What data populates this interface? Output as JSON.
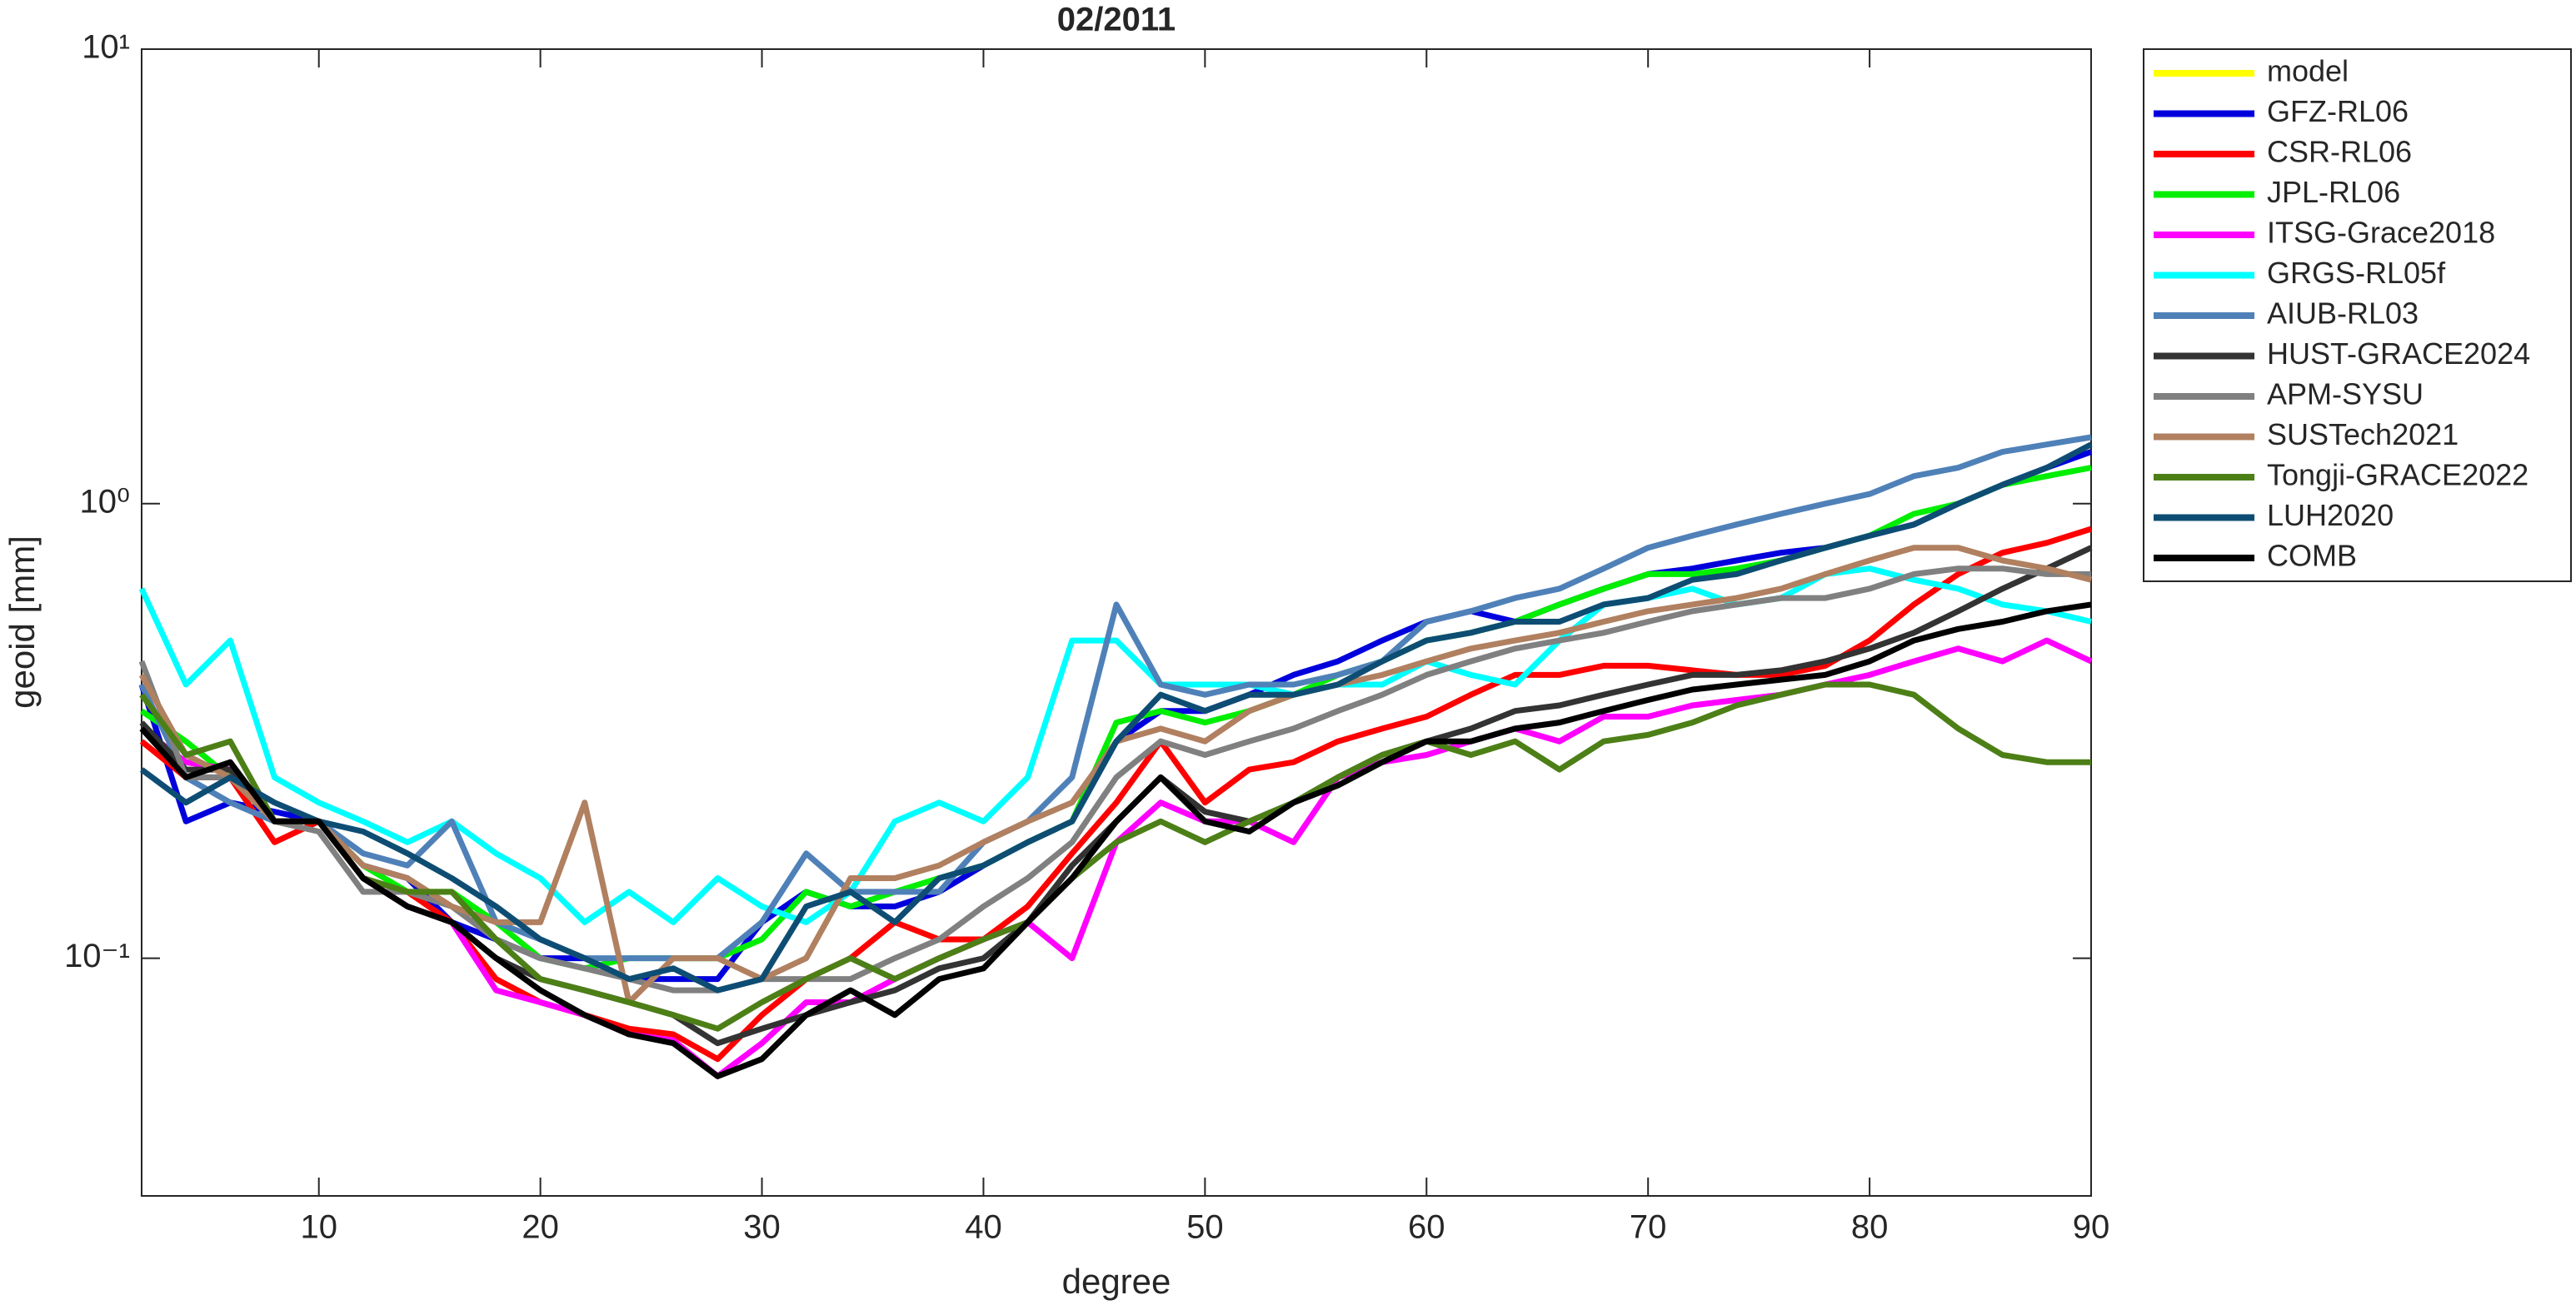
{
  "chart_data": {
    "type": "line",
    "title": "02/2011",
    "x_label": "degree",
    "y_label": "geoid [mm]",
    "yscale": "log",
    "grid": false,
    "legend_position": "outside right",
    "xlim": [
      2,
      90
    ],
    "xticks": [
      10,
      20,
      30,
      40,
      50,
      60,
      70,
      80,
      90
    ],
    "ylim": [
      0.03,
      10
    ],
    "yticks": [
      {
        "value": 0.1,
        "label": "10⁻¹"
      },
      {
        "value": 1,
        "label": "10⁰"
      },
      {
        "value": 10,
        "label": "10¹"
      }
    ],
    "x": [
      2,
      4,
      6,
      8,
      10,
      12,
      14,
      16,
      18,
      20,
      22,
      24,
      26,
      28,
      30,
      32,
      34,
      36,
      38,
      40,
      42,
      44,
      46,
      48,
      50,
      52,
      54,
      56,
      58,
      60,
      62,
      64,
      66,
      68,
      70,
      72,
      74,
      76,
      78,
      80,
      82,
      84,
      86,
      88,
      90
    ],
    "series": [
      {
        "name": "model",
        "color": "#ffff00",
        "values": [
          null,
          null,
          null,
          null,
          null,
          null,
          null,
          null,
          null,
          null,
          null,
          null,
          null,
          null,
          null,
          null,
          null,
          null,
          null,
          null,
          null,
          null,
          null,
          null,
          null,
          null,
          null,
          null,
          null,
          null,
          null,
          null,
          null,
          null,
          null,
          null,
          null,
          null,
          null,
          null,
          null,
          null,
          null,
          null,
          null
        ]
      },
      {
        "name": "GFZ-RL06",
        "color": "#0000dd",
        "values": [
          0.4,
          0.2,
          0.22,
          0.21,
          0.2,
          0.16,
          0.15,
          0.12,
          0.11,
          0.1,
          0.1,
          0.09,
          0.09,
          0.09,
          0.12,
          0.14,
          0.13,
          0.13,
          0.14,
          0.16,
          0.18,
          0.2,
          0.3,
          0.35,
          0.35,
          0.38,
          0.42,
          0.45,
          0.5,
          0.55,
          0.58,
          0.55,
          0.6,
          0.65,
          0.7,
          0.72,
          0.75,
          0.78,
          0.8,
          0.85,
          0.9,
          1.0,
          1.1,
          1.2,
          1.3
        ]
      },
      {
        "name": "CSR-RL06",
        "color": "#ff0000",
        "values": [
          0.3,
          0.25,
          0.25,
          0.18,
          0.2,
          0.15,
          0.14,
          0.12,
          0.09,
          0.08,
          0.075,
          0.07,
          0.068,
          0.06,
          0.075,
          0.09,
          0.1,
          0.12,
          0.11,
          0.11,
          0.13,
          0.17,
          0.22,
          0.3,
          0.22,
          0.26,
          0.27,
          0.3,
          0.32,
          0.34,
          0.38,
          0.42,
          0.42,
          0.44,
          0.44,
          0.43,
          0.42,
          0.42,
          0.44,
          0.5,
          0.6,
          0.7,
          0.78,
          0.82,
          0.88
        ]
      },
      {
        "name": "JPL-RL06",
        "color": "#00ee00",
        "values": [
          0.35,
          0.3,
          0.25,
          0.2,
          0.2,
          0.16,
          0.14,
          0.14,
          0.12,
          0.1,
          0.095,
          0.1,
          0.1,
          0.1,
          0.11,
          0.14,
          0.13,
          0.14,
          0.15,
          0.16,
          0.18,
          0.2,
          0.33,
          0.35,
          0.33,
          0.35,
          0.38,
          0.42,
          0.45,
          0.5,
          0.52,
          0.55,
          0.6,
          0.65,
          0.7,
          0.7,
          0.72,
          0.75,
          0.8,
          0.85,
          0.95,
          1.0,
          1.1,
          1.15,
          1.2
        ]
      },
      {
        "name": "ITSG-Grace2018",
        "color": "#ff00ff",
        "values": [
          0.32,
          0.27,
          0.26,
          0.2,
          0.2,
          0.15,
          0.13,
          0.12,
          0.085,
          0.08,
          0.075,
          0.068,
          0.066,
          0.055,
          0.065,
          0.08,
          0.08,
          0.09,
          0.1,
          0.11,
          0.12,
          0.1,
          0.18,
          0.22,
          0.2,
          0.2,
          0.18,
          0.25,
          0.27,
          0.28,
          0.3,
          0.32,
          0.3,
          0.34,
          0.34,
          0.36,
          0.37,
          0.38,
          0.4,
          0.42,
          0.45,
          0.48,
          0.45,
          0.5,
          0.45
        ]
      },
      {
        "name": "GRGS-RL05f",
        "color": "#00ffff",
        "values": [
          0.65,
          0.4,
          0.5,
          0.25,
          0.22,
          0.2,
          0.18,
          0.2,
          0.17,
          0.15,
          0.12,
          0.14,
          0.12,
          0.15,
          0.13,
          0.12,
          0.14,
          0.2,
          0.22,
          0.2,
          0.25,
          0.5,
          0.5,
          0.4,
          0.4,
          0.4,
          0.38,
          0.4,
          0.4,
          0.45,
          0.42,
          0.4,
          0.5,
          0.6,
          0.62,
          0.65,
          0.6,
          0.62,
          0.7,
          0.72,
          0.68,
          0.65,
          0.6,
          0.58,
          0.55
        ]
      },
      {
        "name": "AIUB-RL03",
        "color": "#4f81b8",
        "values": [
          0.4,
          0.25,
          0.22,
          0.2,
          0.2,
          0.17,
          0.16,
          0.2,
          0.12,
          0.11,
          0.1,
          0.1,
          0.1,
          0.1,
          0.12,
          0.17,
          0.14,
          0.14,
          0.14,
          0.18,
          0.2,
          0.25,
          0.6,
          0.4,
          0.38,
          0.4,
          0.4,
          0.42,
          0.45,
          0.55,
          0.58,
          0.62,
          0.65,
          0.72,
          0.8,
          0.85,
          0.9,
          0.95,
          1.0,
          1.05,
          1.15,
          1.2,
          1.3,
          1.35,
          1.4
        ]
      },
      {
        "name": "HUST-GRACE2024",
        "color": "#333333",
        "values": [
          0.33,
          0.26,
          0.26,
          0.2,
          0.2,
          0.15,
          0.13,
          0.12,
          0.1,
          0.09,
          0.085,
          0.08,
          0.075,
          0.065,
          0.07,
          0.075,
          0.08,
          0.085,
          0.095,
          0.1,
          0.12,
          0.16,
          0.2,
          0.25,
          0.21,
          0.2,
          0.22,
          0.25,
          0.28,
          0.3,
          0.32,
          0.35,
          0.36,
          0.38,
          0.4,
          0.42,
          0.42,
          0.43,
          0.45,
          0.48,
          0.52,
          0.58,
          0.65,
          0.72,
          0.8
        ]
      },
      {
        "name": "APM-SYSU",
        "color": "#808080",
        "values": [
          0.45,
          0.25,
          0.25,
          0.2,
          0.19,
          0.14,
          0.14,
          0.13,
          0.11,
          0.1,
          0.095,
          0.09,
          0.085,
          0.085,
          0.09,
          0.09,
          0.09,
          0.1,
          0.11,
          0.13,
          0.15,
          0.18,
          0.25,
          0.3,
          0.28,
          0.3,
          0.32,
          0.35,
          0.38,
          0.42,
          0.45,
          0.48,
          0.5,
          0.52,
          0.55,
          0.58,
          0.6,
          0.62,
          0.62,
          0.65,
          0.7,
          0.72,
          0.72,
          0.7,
          0.7
        ]
      },
      {
        "name": "SUSTech2021",
        "color": "#b08060",
        "values": [
          0.42,
          0.28,
          0.25,
          0.2,
          0.2,
          0.16,
          0.15,
          0.13,
          0.12,
          0.12,
          0.22,
          0.08,
          0.1,
          0.1,
          0.09,
          0.1,
          0.15,
          0.15,
          0.16,
          0.18,
          0.2,
          0.22,
          0.3,
          0.32,
          0.3,
          0.35,
          0.38,
          0.4,
          0.42,
          0.45,
          0.48,
          0.5,
          0.52,
          0.55,
          0.58,
          0.6,
          0.62,
          0.65,
          0.7,
          0.75,
          0.8,
          0.8,
          0.75,
          0.72,
          0.68
        ]
      },
      {
        "name": "Tongji-GRACE2022",
        "color": "#4d7f17",
        "values": [
          0.38,
          0.28,
          0.3,
          0.2,
          0.2,
          0.15,
          0.14,
          0.14,
          0.11,
          0.09,
          0.085,
          0.08,
          0.075,
          0.07,
          0.08,
          0.09,
          0.1,
          0.09,
          0.1,
          0.11,
          0.12,
          0.15,
          0.18,
          0.2,
          0.18,
          0.2,
          0.22,
          0.25,
          0.28,
          0.3,
          0.28,
          0.3,
          0.26,
          0.3,
          0.31,
          0.33,
          0.36,
          0.38,
          0.4,
          0.4,
          0.38,
          0.32,
          0.28,
          0.27,
          0.27
        ]
      },
      {
        "name": "LUH2020",
        "color": "#0e4d73",
        "values": [
          0.26,
          0.22,
          0.25,
          0.22,
          0.2,
          0.19,
          0.17,
          0.15,
          0.13,
          0.11,
          0.1,
          0.09,
          0.095,
          0.085,
          0.09,
          0.13,
          0.14,
          0.12,
          0.15,
          0.16,
          0.18,
          0.2,
          0.3,
          0.38,
          0.35,
          0.38,
          0.38,
          0.4,
          0.45,
          0.5,
          0.52,
          0.55,
          0.55,
          0.6,
          0.62,
          0.68,
          0.7,
          0.75,
          0.8,
          0.85,
          0.9,
          1.0,
          1.1,
          1.2,
          1.35
        ]
      },
      {
        "name": "COMB",
        "color": "#000000",
        "values": [
          0.32,
          0.25,
          0.27,
          0.2,
          0.2,
          0.15,
          0.13,
          0.12,
          0.1,
          0.085,
          0.075,
          0.068,
          0.065,
          0.055,
          0.06,
          0.075,
          0.085,
          0.075,
          0.09,
          0.095,
          0.12,
          0.15,
          0.2,
          0.25,
          0.2,
          0.19,
          0.22,
          0.24,
          0.27,
          0.3,
          0.3,
          0.32,
          0.33,
          0.35,
          0.37,
          0.39,
          0.4,
          0.41,
          0.42,
          0.45,
          0.5,
          0.53,
          0.55,
          0.58,
          0.6
        ]
      }
    ]
  }
}
